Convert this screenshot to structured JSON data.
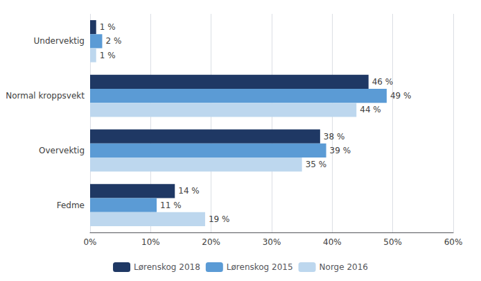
{
  "chart_data": {
    "type": "bar",
    "orientation": "horizontal",
    "categories": [
      "Undervektig",
      "Normal kroppsvekt",
      "Overvektig",
      "Fedme"
    ],
    "series": [
      {
        "name": "Lørenskog 2018",
        "color": "#1F3864",
        "values": [
          1,
          46,
          38,
          14
        ],
        "value_labels": [
          "1 %",
          "46 %",
          "38 %",
          "14 %"
        ]
      },
      {
        "name": "Lørenskog 2015",
        "color": "#5B9BD5",
        "values": [
          2,
          49,
          39,
          11
        ],
        "value_labels": [
          "2 %",
          "49 %",
          "39 %",
          "11 %"
        ]
      },
      {
        "name": "Norge 2016",
        "color": "#BDD7EE",
        "values": [
          1,
          44,
          35,
          19
        ],
        "value_labels": [
          "1 %",
          "44 %",
          "35 %",
          "19 %"
        ]
      }
    ],
    "xlim": [
      0,
      60
    ],
    "xticks": [
      {
        "value": 0,
        "label": "0%"
      },
      {
        "value": 10,
        "label": "10%"
      },
      {
        "value": 20,
        "label": "20%"
      },
      {
        "value": 30,
        "label": "30%"
      },
      {
        "value": 40,
        "label": "40%"
      },
      {
        "value": 50,
        "label": "50%"
      },
      {
        "value": 60,
        "label": "60%"
      }
    ],
    "grid": true,
    "legend": "bottom",
    "data_labels": true
  }
}
